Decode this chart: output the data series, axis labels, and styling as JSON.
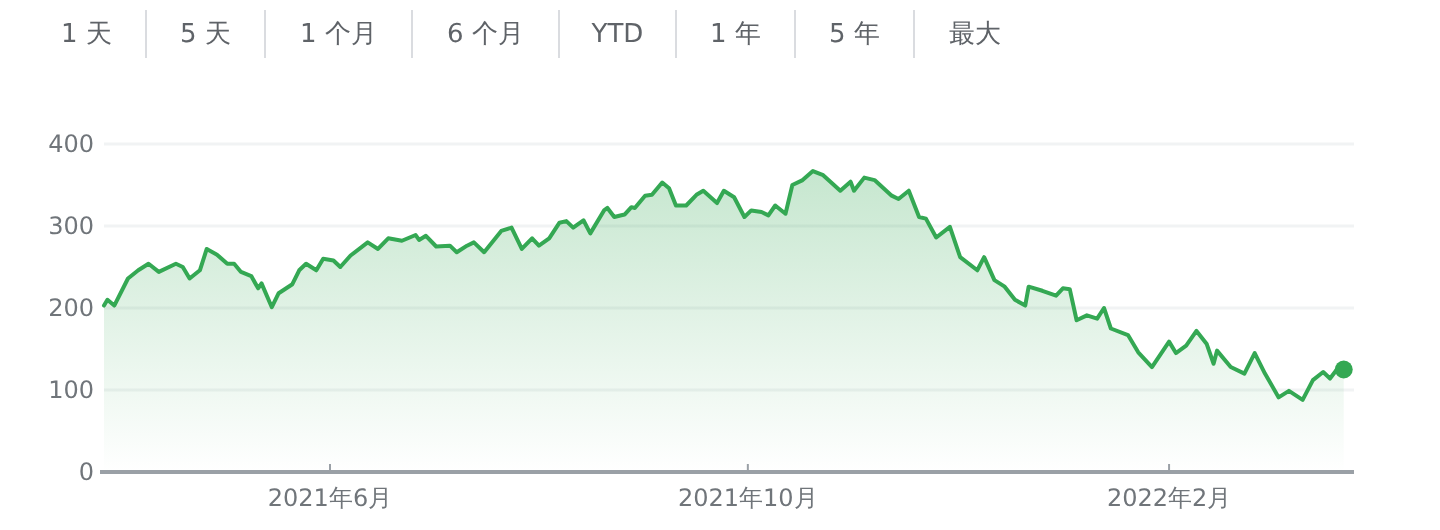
{
  "chart_data": {
    "type": "area",
    "annotations": [
      "1 天",
      "5 天",
      "1 个月",
      "6 个月",
      "YTD",
      "1 年",
      "5 年",
      "最大"
    ],
    "xlim": [
      "2021-03-27",
      "2022-03-27"
    ],
    "xticks": [
      {
        "value": "2021-06-01",
        "label": "2021年6月"
      },
      {
        "value": "2021-10-01",
        "label": "2021年10月"
      },
      {
        "value": "2022-02-01",
        "label": "2022年2月"
      }
    ],
    "ylim": [
      0,
      400
    ],
    "yticks": [
      0,
      100,
      200,
      300,
      400
    ],
    "grid": "y",
    "marker": "none",
    "line_style": "solid",
    "series": [
      {
        "color": "#34a853",
        "x": [
          "2021-03-27",
          "2021-03-28",
          "2021-03-30",
          "2021-04-03",
          "2021-04-06",
          "2021-04-09",
          "2021-04-12",
          "2021-04-17",
          "2021-04-19",
          "2021-04-21",
          "2021-04-24",
          "2021-04-26",
          "2021-04-29",
          "2021-05-02",
          "2021-05-04",
          "2021-05-06",
          "2021-05-09",
          "2021-05-11",
          "2021-05-12",
          "2021-05-15",
          "2021-05-17",
          "2021-05-21",
          "2021-05-23",
          "2021-05-25",
          "2021-05-28",
          "2021-05-30",
          "2021-06-02",
          "2021-06-04",
          "2021-06-07",
          "2021-06-12",
          "2021-06-15",
          "2021-06-18",
          "2021-06-22",
          "2021-06-26",
          "2021-06-27",
          "2021-06-29",
          "2021-07-02",
          "2021-07-06",
          "2021-07-08",
          "2021-07-11",
          "2021-07-13",
          "2021-07-16",
          "2021-07-21",
          "2021-07-24",
          "2021-07-27",
          "2021-07-30",
          "2021-08-01",
          "2021-08-04",
          "2021-08-07",
          "2021-08-09",
          "2021-08-11",
          "2021-08-14",
          "2021-08-16",
          "2021-08-20",
          "2021-08-21",
          "2021-08-23",
          "2021-08-26",
          "2021-08-28",
          "2021-08-29",
          "2021-09-01",
          "2021-09-03",
          "2021-09-06",
          "2021-09-08",
          "2021-09-10",
          "2021-09-13",
          "2021-09-16",
          "2021-09-18",
          "2021-09-22",
          "2021-09-24",
          "2021-09-27",
          "2021-09-30",
          "2021-10-02",
          "2021-10-05",
          "2021-10-07",
          "2021-10-09",
          "2021-10-12",
          "2021-10-14",
          "2021-10-17",
          "2021-10-20",
          "2021-10-23",
          "2021-10-28",
          "2021-10-31",
          "2021-11-01",
          "2021-11-04",
          "2021-11-07",
          "2021-11-12",
          "2021-11-14",
          "2021-11-17",
          "2021-11-20",
          "2021-11-22",
          "2021-11-25",
          "2021-11-29",
          "2021-12-02",
          "2021-12-07",
          "2021-12-09",
          "2021-12-12",
          "2021-12-15",
          "2021-12-18",
          "2021-12-21",
          "2021-12-22",
          "2021-12-26",
          "2021-12-30",
          "2022-01-01",
          "2022-01-03",
          "2022-01-05",
          "2022-01-08",
          "2022-01-11",
          "2022-01-13",
          "2022-01-15",
          "2022-01-20",
          "2022-01-23",
          "2022-01-27",
          "2022-02-01",
          "2022-02-03",
          "2022-02-06",
          "2022-02-09",
          "2022-02-12",
          "2022-02-14",
          "2022-02-15",
          "2022-02-19",
          "2022-02-23",
          "2022-02-26",
          "2022-03-01",
          "2022-03-05",
          "2022-03-08",
          "2022-03-12",
          "2022-03-15",
          "2022-03-18",
          "2022-03-20",
          "2022-03-22",
          "2022-03-24"
        ],
        "values": [
          203,
          210,
          203,
          236,
          246,
          254,
          244,
          254,
          250,
          236,
          246,
          272,
          265,
          254,
          254,
          244,
          239,
          224,
          230,
          201,
          218,
          229,
          246,
          254,
          246,
          260,
          258,
          250,
          264,
          280,
          272,
          285,
          282,
          289,
          283,
          288,
          275,
          276,
          268,
          276,
          280,
          268,
          294,
          298,
          272,
          285,
          276,
          285,
          304,
          306,
          298,
          307,
          291,
          319,
          322,
          311,
          314,
          323,
          322,
          337,
          338,
          353,
          346,
          325,
          325,
          338,
          343,
          328,
          343,
          335,
          311,
          319,
          317,
          313,
          325,
          315,
          350,
          356,
          367,
          362,
          343,
          354,
          343,
          359,
          356,
          337,
          333,
          343,
          311,
          309,
          286,
          299,
          262,
          246,
          262,
          234,
          226,
          210,
          203,
          226,
          221,
          215,
          224,
          223,
          185,
          191,
          187,
          200,
          175,
          167,
          146,
          128,
          159,
          145,
          154,
          172,
          156,
          132,
          148,
          128,
          120,
          145,
          120,
          91,
          99,
          88,
          112,
          122,
          114,
          125,
          125
        ]
      },
      {
        "type": "scatter",
        "color": "#34a853",
        "marker": "circle",
        "x": [
          "2022-03-24"
        ],
        "values": [
          125
        ]
      }
    ]
  }
}
